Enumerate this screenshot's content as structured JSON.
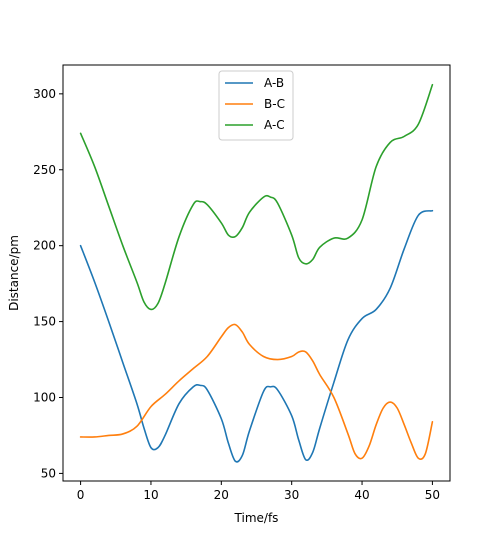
{
  "chart_data": {
    "type": "line",
    "title": "",
    "xlabel": "Time/fs",
    "ylabel": "Distance/pm",
    "xlim": [
      -2.5,
      52.5
    ],
    "ylim": [
      45,
      319
    ],
    "xticks": [
      0,
      10,
      20,
      30,
      40,
      50
    ],
    "yticks": [
      50,
      100,
      150,
      200,
      250,
      300
    ],
    "grid": false,
    "legend_position": "top-center",
    "series": [
      {
        "name": "A-B",
        "color": "#1f77b4",
        "x": [
          0,
          2,
          4,
          6,
          8,
          9,
          10,
          11,
          12,
          14,
          16,
          17,
          18,
          20,
          21,
          22,
          23,
          24,
          26,
          27,
          28,
          30,
          31,
          32,
          33,
          34,
          36,
          38,
          40,
          42,
          44,
          46,
          48,
          50
        ],
        "y": [
          200,
          176,
          150,
          123,
          96,
          80,
          67,
          67,
          75,
          96,
          107,
          108,
          105,
          86,
          70,
          58,
          62,
          78,
          104,
          107,
          105,
          88,
          72,
          59,
          64,
          80,
          110,
          138,
          152,
          158,
          172,
          198,
          220,
          223
        ]
      },
      {
        "name": "B-C",
        "color": "#ff7f0e",
        "x": [
          0,
          2,
          4,
          6,
          8,
          10,
          12,
          14,
          16,
          18,
          20,
          21,
          22,
          23,
          24,
          26,
          28,
          30,
          31,
          32,
          33,
          34,
          36,
          38,
          39,
          40,
          41,
          42,
          43,
          44,
          45,
          46,
          47,
          48,
          49,
          50
        ],
        "y": [
          74,
          74,
          75,
          76,
          81,
          94,
          102,
          111,
          119,
          127,
          140,
          146,
          148,
          143,
          135,
          127,
          125,
          127,
          130,
          130,
          124,
          115,
          100,
          76,
          63,
          60,
          68,
          82,
          93,
          97,
          93,
          82,
          70,
          60,
          63,
          84
        ]
      },
      {
        "name": "A-C",
        "color": "#2ca02c",
        "x": [
          0,
          2,
          4,
          6,
          8,
          9,
          10,
          11,
          12,
          14,
          16,
          17,
          18,
          20,
          21,
          22,
          23,
          24,
          26,
          27,
          28,
          30,
          31,
          32,
          33,
          34,
          36,
          38,
          40,
          42,
          44,
          46,
          48,
          50
        ],
        "y": [
          274,
          252,
          226,
          200,
          176,
          163,
          158,
          162,
          175,
          206,
          227,
          229,
          227,
          215,
          207,
          206,
          212,
          222,
          232,
          232,
          228,
          207,
          192,
          188,
          191,
          199,
          205,
          205,
          217,
          252,
          268,
          272,
          280,
          306
        ]
      }
    ]
  }
}
